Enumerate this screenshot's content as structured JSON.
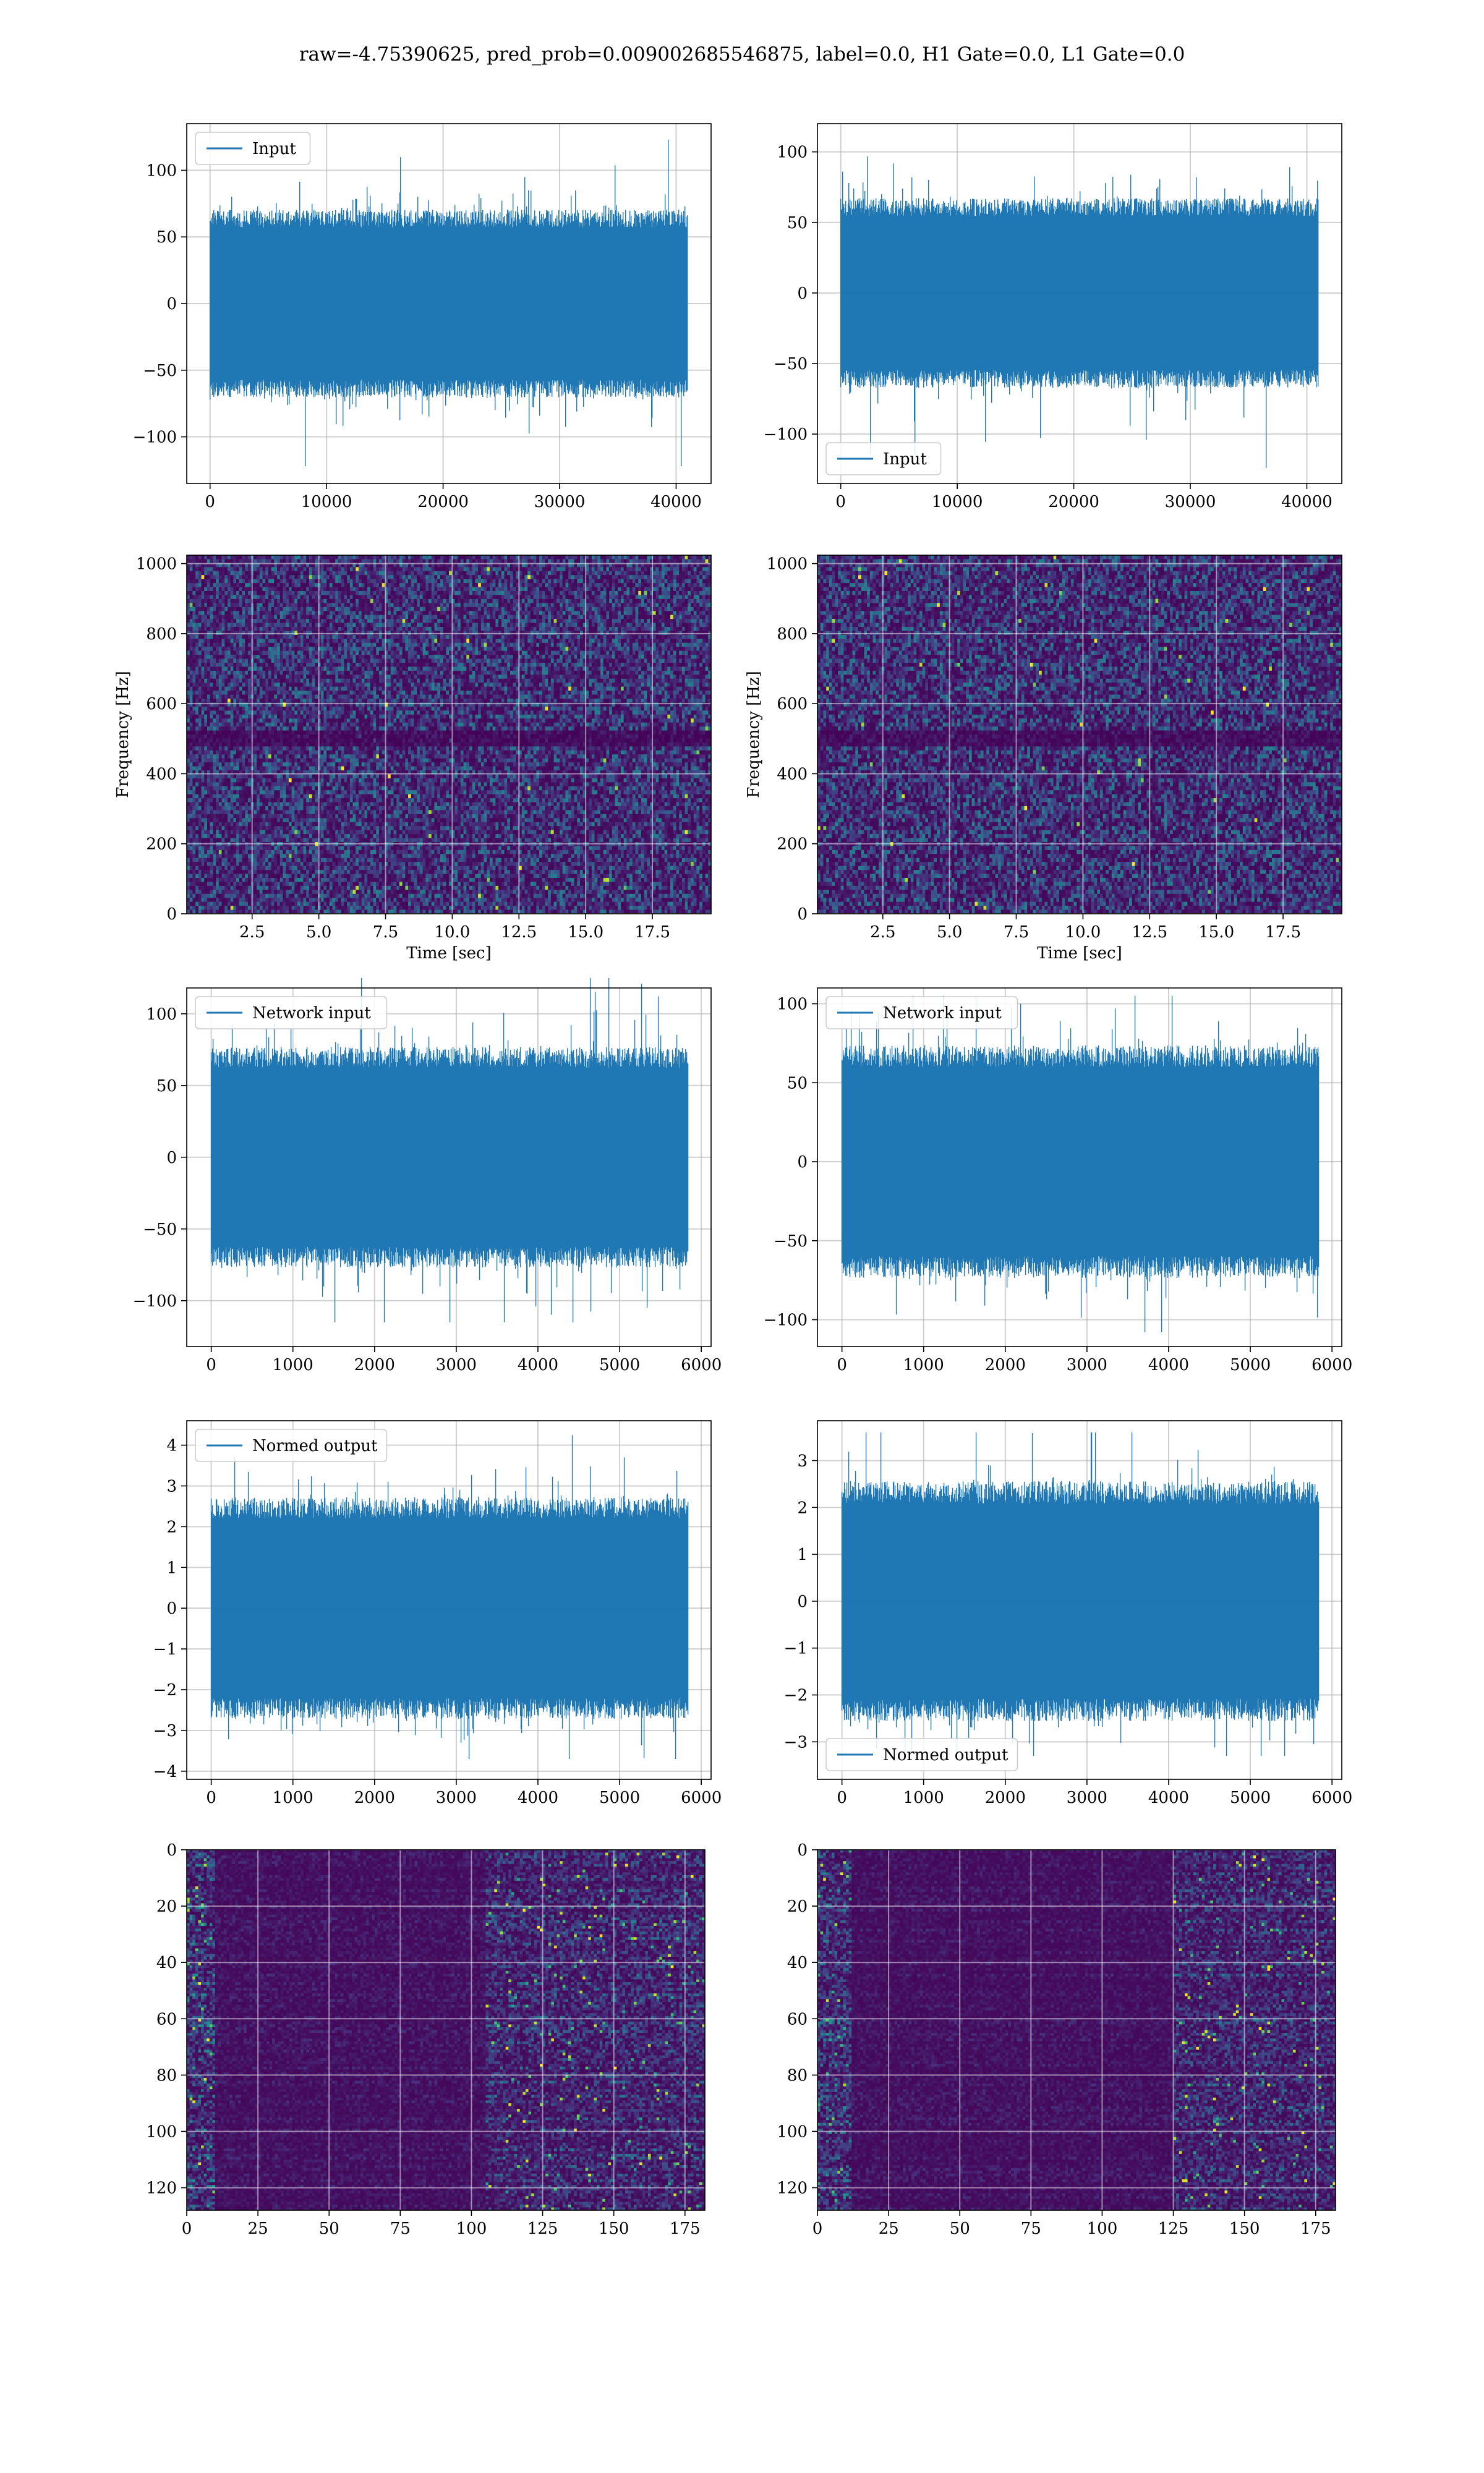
{
  "figure": {
    "suptitle": "raw=-4.75390625, pred_prob=0.009002685546875, label=0.0, H1 Gate=0.0, L1 Gate=0.0"
  },
  "colors": {
    "line": "#1f77b4",
    "grid": "#b0b0b0",
    "viridis_dark": "#440154",
    "viridis_bright": "#fde725"
  },
  "chart_data": [
    {
      "id": "r1c1",
      "type": "line",
      "title": "",
      "xlabel": "",
      "ylabel": "",
      "xlim": [
        -2000,
        43000
      ],
      "ylim": [
        -135,
        135
      ],
      "xticks": [
        0,
        10000,
        20000,
        30000,
        40000
      ],
      "yticks": [
        -100,
        -50,
        0,
        50,
        100
      ],
      "legend": {
        "label": "Input",
        "loc": "upper-left"
      },
      "series": [
        {
          "name": "Input",
          "x_range": [
            0,
            40960
          ],
          "n_points": 40960,
          "std": 22,
          "clip_range": [
            -122,
            124
          ]
        }
      ],
      "grid": true
    },
    {
      "id": "r1c2",
      "type": "line",
      "title": "",
      "xlabel": "",
      "ylabel": "",
      "xlim": [
        -2000,
        43000
      ],
      "ylim": [
        -135,
        120
      ],
      "xticks": [
        0,
        10000,
        20000,
        30000,
        40000
      ],
      "yticks": [
        -100,
        -50,
        0,
        50,
        100
      ],
      "legend": {
        "label": "Input",
        "loc": "lower-left"
      },
      "series": [
        {
          "name": "Input",
          "x_range": [
            0,
            40960
          ],
          "n_points": 40960,
          "std": 21,
          "clip_range": [
            -124,
            114
          ]
        }
      ],
      "grid": true
    },
    {
      "id": "r2c1",
      "type": "heatmap",
      "title": "",
      "xlabel": "Time [sec]",
      "ylabel": "Frequency [Hz]",
      "xlim": [
        0.05,
        19.7
      ],
      "ylim": [
        0,
        1024
      ],
      "xticks": [
        2.5,
        5.0,
        7.5,
        10.0,
        12.5,
        15.0,
        17.5
      ],
      "xtick_labels": [
        "2.5",
        "5.0",
        "7.5",
        "10.0",
        "12.5",
        "15.0",
        "17.5"
      ],
      "yticks": [
        0,
        200,
        400,
        600,
        800,
        1000
      ],
      "colormap": "viridis",
      "value_range": [
        0,
        1
      ],
      "dark_band_hz": [
        480,
        520
      ],
      "grid": true
    },
    {
      "id": "r2c2",
      "type": "heatmap",
      "title": "",
      "xlabel": "Time [sec]",
      "ylabel": "Frequency [Hz]",
      "xlim": [
        0.05,
        19.7
      ],
      "ylim": [
        0,
        1024
      ],
      "xticks": [
        2.5,
        5.0,
        7.5,
        10.0,
        12.5,
        15.0,
        17.5
      ],
      "xtick_labels": [
        "2.5",
        "5.0",
        "7.5",
        "10.0",
        "12.5",
        "15.0",
        "17.5"
      ],
      "yticks": [
        0,
        200,
        400,
        600,
        800,
        1000
      ],
      "colormap": "viridis",
      "value_range": [
        0,
        1
      ],
      "dark_band_hz": [
        480,
        520
      ],
      "grid": true
    },
    {
      "id": "r3c1",
      "type": "line",
      "title": "",
      "xlabel": "",
      "ylabel": "",
      "xlim": [
        -300,
        6120
      ],
      "ylim": [
        -132,
        118
      ],
      "xticks": [
        0,
        1000,
        2000,
        3000,
        4000,
        5000,
        6000
      ],
      "yticks": [
        -100,
        -50,
        0,
        50,
        100
      ],
      "legend": {
        "label": "Network input",
        "loc": "upper-left"
      },
      "series": [
        {
          "name": "Network input",
          "x_range": [
            0,
            5840
          ],
          "n_points": 5840,
          "std": 24,
          "clip_range": [
            -115,
            125
          ]
        }
      ],
      "grid": true
    },
    {
      "id": "r3c2",
      "type": "line",
      "title": "",
      "xlabel": "",
      "ylabel": "",
      "xlim": [
        -300,
        6120
      ],
      "ylim": [
        -117,
        110
      ],
      "xticks": [
        0,
        1000,
        2000,
        3000,
        4000,
        5000,
        6000
      ],
      "yticks": [
        -100,
        -50,
        0,
        50,
        100
      ],
      "legend": {
        "label": "Network input",
        "loc": "upper-left"
      },
      "series": [
        {
          "name": "Network input",
          "x_range": [
            0,
            5840
          ],
          "n_points": 5840,
          "std": 23,
          "clip_range": [
            -108,
            105
          ]
        }
      ],
      "grid": true
    },
    {
      "id": "r4c1",
      "type": "line",
      "title": "",
      "xlabel": "",
      "ylabel": "",
      "xlim": [
        -300,
        6120
      ],
      "ylim": [
        -4.2,
        4.6
      ],
      "xticks": [
        0,
        1000,
        2000,
        3000,
        4000,
        5000,
        6000
      ],
      "yticks": [
        -4,
        -3,
        -2,
        -1,
        0,
        1,
        2,
        3,
        4
      ],
      "legend": {
        "label": "Normed output",
        "loc": "upper-left"
      },
      "series": [
        {
          "name": "Normed output",
          "x_range": [
            0,
            5840
          ],
          "n_points": 5840,
          "std": 0.85,
          "clip_range": [
            -3.7,
            4.25
          ]
        }
      ],
      "grid": true
    },
    {
      "id": "r4c2",
      "type": "line",
      "title": "",
      "xlabel": "",
      "ylabel": "",
      "xlim": [
        -300,
        6120
      ],
      "ylim": [
        -3.8,
        3.85
      ],
      "xticks": [
        0,
        1000,
        2000,
        3000,
        4000,
        5000,
        6000
      ],
      "yticks": [
        -3,
        -2,
        -1,
        0,
        1,
        2,
        3
      ],
      "legend": {
        "label": "Normed output",
        "loc": "lower-left"
      },
      "series": [
        {
          "name": "Normed output",
          "x_range": [
            0,
            5840
          ],
          "n_points": 5840,
          "std": 0.8,
          "clip_range": [
            -3.3,
            3.6
          ]
        }
      ],
      "grid": true
    },
    {
      "id": "r5c1",
      "type": "heatmap",
      "title": "",
      "xlabel": "",
      "ylabel": "",
      "xlim": [
        0,
        182
      ],
      "ylim": [
        128,
        0
      ],
      "xticks": [
        0,
        25,
        50,
        75,
        100,
        125,
        150,
        175
      ],
      "yticks": [
        0,
        20,
        40,
        60,
        80,
        100,
        120
      ],
      "n_rows": 128,
      "n_cols": 182,
      "colormap": "viridis",
      "value_range": [
        0,
        1
      ],
      "active_regions": [
        {
          "x_range": [
            0,
            10
          ]
        },
        {
          "x_range": [
            105,
            182
          ]
        }
      ],
      "grid": true
    },
    {
      "id": "r5c2",
      "type": "heatmap",
      "title": "",
      "xlabel": "",
      "ylabel": "",
      "xlim": [
        0,
        182
      ],
      "ylim": [
        128,
        0
      ],
      "xticks": [
        0,
        25,
        50,
        75,
        100,
        125,
        150,
        175
      ],
      "yticks": [
        0,
        20,
        40,
        60,
        80,
        100,
        120
      ],
      "n_rows": 128,
      "n_cols": 182,
      "colormap": "viridis",
      "value_range": [
        0,
        1
      ],
      "active_regions": [
        {
          "x_range": [
            0,
            12
          ]
        },
        {
          "x_range": [
            125,
            182
          ]
        }
      ],
      "grid": true
    }
  ]
}
